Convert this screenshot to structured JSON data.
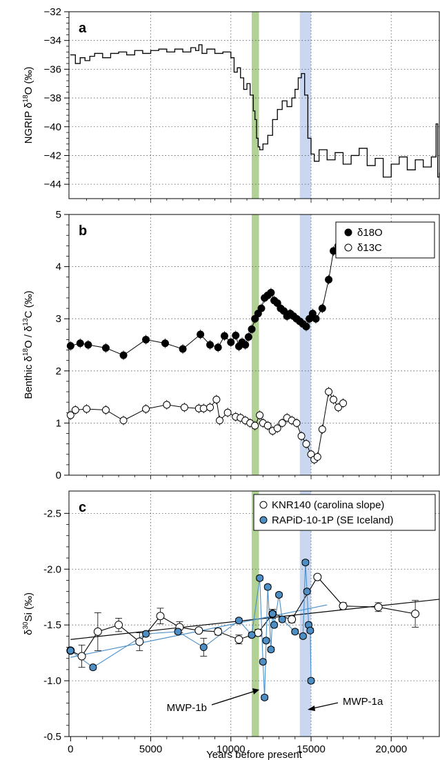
{
  "figure": {
    "xlabel": "Years before present",
    "x_tick_labels": [
      "0",
      "5000",
      "10000",
      "15000",
      "20,000"
    ],
    "x_ticks": [
      0,
      5000,
      10000,
      15000,
      20000
    ],
    "xlim": [
      -100,
      23000
    ],
    "bands": [
      {
        "range": [
          11300,
          11750
        ],
        "color": "#a9cc8a"
      },
      {
        "range": [
          14300,
          15000
        ],
        "color": "#c3d3ee"
      }
    ]
  },
  "chart_data": [
    {
      "panel": "a",
      "type": "line",
      "ylabel_parts": [
        "NGRIP δ",
        "18",
        "O (‰)"
      ],
      "ylim": [
        -45,
        -32
      ],
      "y_ticks": [
        -44,
        -42,
        -40,
        -38,
        -36,
        -34,
        -32
      ],
      "y_tick_labels": [
        "−44",
        "−42",
        "−40",
        "−38",
        "−36",
        "−34",
        "−32"
      ],
      "grid": true,
      "series": [
        {
          "color": "#000000",
          "x": [
            0,
            300,
            600,
            900,
            1200,
            1500,
            2000,
            2500,
            3000,
            3500,
            4000,
            4500,
            5000,
            5500,
            6000,
            6500,
            7000,
            7500,
            7800,
            8000,
            8200,
            8500,
            9000,
            9500,
            10000,
            10200,
            10400,
            10600,
            10800,
            11000,
            11200,
            11400,
            11500,
            11600,
            11700,
            11800,
            12000,
            12300,
            12600,
            12900,
            13200,
            13500,
            13800,
            14000,
            14200,
            14400,
            14600,
            14800,
            15000,
            15200,
            15500,
            16000,
            16500,
            17000,
            17500,
            18000,
            18500,
            19000,
            19500,
            20000,
            20500,
            21000,
            21500,
            22000,
            22500,
            22800,
            22900,
            23000
          ],
          "y": [
            -35.0,
            -35.6,
            -35.2,
            -35.4,
            -35.1,
            -34.9,
            -35.2,
            -34.9,
            -34.8,
            -35.0,
            -34.7,
            -34.9,
            -34.7,
            -34.6,
            -34.8,
            -34.6,
            -34.8,
            -34.5,
            -34.7,
            -34.3,
            -34.9,
            -34.6,
            -34.9,
            -34.8,
            -35.2,
            -36.2,
            -35.9,
            -36.6,
            -37.4,
            -37.0,
            -37.8,
            -38.9,
            -39.5,
            -40.8,
            -41.4,
            -41.6,
            -41.2,
            -40.6,
            -39.5,
            -38.8,
            -38.2,
            -38.6,
            -38.0,
            -37.4,
            -36.6,
            -36.3,
            -37.8,
            -40.8,
            -41.9,
            -42.4,
            -41.6,
            -42.3,
            -41.8,
            -42.6,
            -42.0,
            -41.5,
            -42.7,
            -42.2,
            -43.5,
            -42.6,
            -42.1,
            -43.0,
            -42.3,
            -42.8,
            -42.1,
            -39.8,
            -43.5,
            -43.2
          ]
        }
      ]
    },
    {
      "panel": "b",
      "type": "scatter",
      "ylabel_parts": [
        "Benthic δ",
        "18",
        "O / δ",
        "13",
        "C (‰)"
      ],
      "ylim": [
        0,
        5
      ],
      "y_ticks": [
        0,
        1,
        2,
        3,
        4,
        5
      ],
      "y_tick_labels": [
        "0",
        "1",
        "2",
        "3",
        "4",
        "5"
      ],
      "grid": true,
      "legend_position": "top-right",
      "series": [
        {
          "name": "δ18O",
          "fill": "#000000",
          "x": [
            0,
            600,
            1100,
            2200,
            3300,
            4700,
            5900,
            7000,
            8100,
            8700,
            9200,
            9600,
            10000,
            10300,
            10500,
            10700,
            10900,
            11100,
            11300,
            11500,
            11700,
            11900,
            12100,
            12300,
            12500,
            12700,
            12900,
            13100,
            13300,
            13500,
            13700,
            13900,
            14100,
            14300,
            14500,
            14700,
            14900,
            15100,
            15300,
            15700,
            16100,
            16400,
            16700,
            17000
          ],
          "y": [
            2.48,
            2.53,
            2.5,
            2.44,
            2.3,
            2.6,
            2.53,
            2.42,
            2.7,
            2.5,
            2.45,
            2.67,
            2.55,
            2.68,
            2.47,
            2.55,
            2.5,
            2.65,
            2.8,
            3.0,
            3.1,
            3.2,
            3.4,
            3.45,
            3.5,
            3.35,
            3.3,
            3.2,
            3.15,
            3.05,
            3.1,
            3.05,
            3.0,
            2.95,
            2.9,
            2.85,
            3.0,
            3.1,
            3.0,
            3.2,
            3.75,
            4.3,
            4.4,
            4.55
          ]
        },
        {
          "name": "δ13C",
          "fill": "#ffffff",
          "x": [
            0,
            300,
            1000,
            2200,
            3300,
            4700,
            6000,
            7100,
            8000,
            8300,
            8700,
            9100,
            9300,
            9800,
            10300,
            10600,
            10900,
            11200,
            11500,
            11800,
            12000,
            12300,
            12600,
            12900,
            13200,
            13500,
            13800,
            14100,
            14400,
            14700,
            15000,
            15200,
            15400,
            15700,
            16100,
            16400,
            16700,
            17000
          ],
          "y": [
            1.15,
            1.25,
            1.27,
            1.25,
            1.05,
            1.27,
            1.35,
            1.3,
            1.28,
            1.28,
            1.3,
            1.45,
            1.05,
            1.2,
            1.12,
            1.1,
            1.05,
            1.0,
            0.95,
            1.15,
            1.0,
            0.95,
            0.85,
            0.9,
            1.0,
            1.1,
            1.05,
            1.0,
            0.75,
            0.6,
            0.4,
            0.3,
            0.35,
            0.88,
            1.6,
            1.45,
            1.3,
            1.38
          ]
        }
      ]
    },
    {
      "panel": "c",
      "type": "scatter",
      "ylabel_parts": [
        "δ",
        "30",
        "Si (‰)"
      ],
      "ylim": [
        -2.7,
        -0.5
      ],
      "y_reversed": true,
      "y_ticks": [
        -2.5,
        -2.0,
        -1.5,
        -1.0,
        -0.5
      ],
      "y_tick_labels": [
        "-2.5",
        "-2.0",
        "-1.5",
        "-1.0",
        "-0.5"
      ],
      "grid": true,
      "legend_position": "top-right",
      "series": [
        {
          "name": "KNR140 (carolina slope)",
          "fill": "#ffffff",
          "line": "#000000",
          "x": [
            0,
            700,
            1700,
            3000,
            4300,
            5600,
            6800,
            8000,
            9200,
            10500,
            11700,
            12600,
            13800,
            15400,
            17000,
            19200,
            21500
          ],
          "y": [
            -1.27,
            -1.22,
            -1.44,
            -1.5,
            -1.35,
            -1.58,
            -1.48,
            -1.45,
            -1.44,
            -1.37,
            -1.43,
            -1.6,
            -1.55,
            -1.93,
            -1.67,
            -1.66,
            -1.6
          ],
          "err": [
            0.02,
            0.1,
            0.17,
            0.06,
            0.08,
            0.07,
            0.05,
            0.02,
            0.03,
            0.04,
            0.03,
            0.04,
            0.03,
            0.02,
            0.03,
            0.04,
            0.12
          ]
        },
        {
          "name": "RAPiD-10-1P (SE Iceland)",
          "fill": "#4d8fc4",
          "line": "#4a8fc8",
          "x": [
            0,
            1400,
            4700,
            6700,
            8300,
            10500,
            11300,
            11800,
            12000,
            12100,
            12200,
            12300,
            12500,
            12600,
            12700,
            13000,
            13200,
            14000,
            14500,
            14650,
            14750,
            14850,
            14950,
            15000
          ],
          "y": [
            -1.27,
            -1.12,
            -1.42,
            -1.44,
            -1.3,
            -1.54,
            -1.41,
            -1.92,
            -1.17,
            -0.85,
            -1.36,
            -1.84,
            -1.28,
            -1.6,
            -1.5,
            -1.77,
            -1.55,
            -1.44,
            -1.4,
            -2.06,
            -1.8,
            -1.5,
            -1.45,
            -1.0
          ],
          "err": [
            0.02,
            0.02,
            0.02,
            0.02,
            0.08,
            0.02,
            0.02,
            0.02,
            0.02,
            0.02,
            0.02,
            0.02,
            0.02,
            0.02,
            0.02,
            0.02,
            0.02,
            0.02,
            0.02,
            0.02,
            0.02,
            0.02,
            0.02,
            0.02
          ]
        }
      ],
      "trend_lines": [
        {
          "color": "#000000",
          "x": [
            0,
            23000
          ],
          "y": [
            -1.37,
            -1.73
          ]
        },
        {
          "color": "#4a8fc8",
          "x": [
            0,
            16000
          ],
          "y": [
            -1.21,
            -1.68
          ]
        }
      ],
      "annotations": [
        {
          "text": "MWP-1b"
        },
        {
          "text": "MWP-1a"
        }
      ]
    }
  ],
  "panels": {
    "a": {
      "label": "a"
    },
    "b": {
      "label": "b",
      "legend": [
        "δ18O",
        "δ13C"
      ]
    },
    "c": {
      "label": "c",
      "legend": [
        "KNR140 (carolina slope)",
        "RAPiD-10-1P (SE Iceland)"
      ],
      "annotation_left": "MWP-1b",
      "annotation_right": "MWP-1a"
    }
  }
}
